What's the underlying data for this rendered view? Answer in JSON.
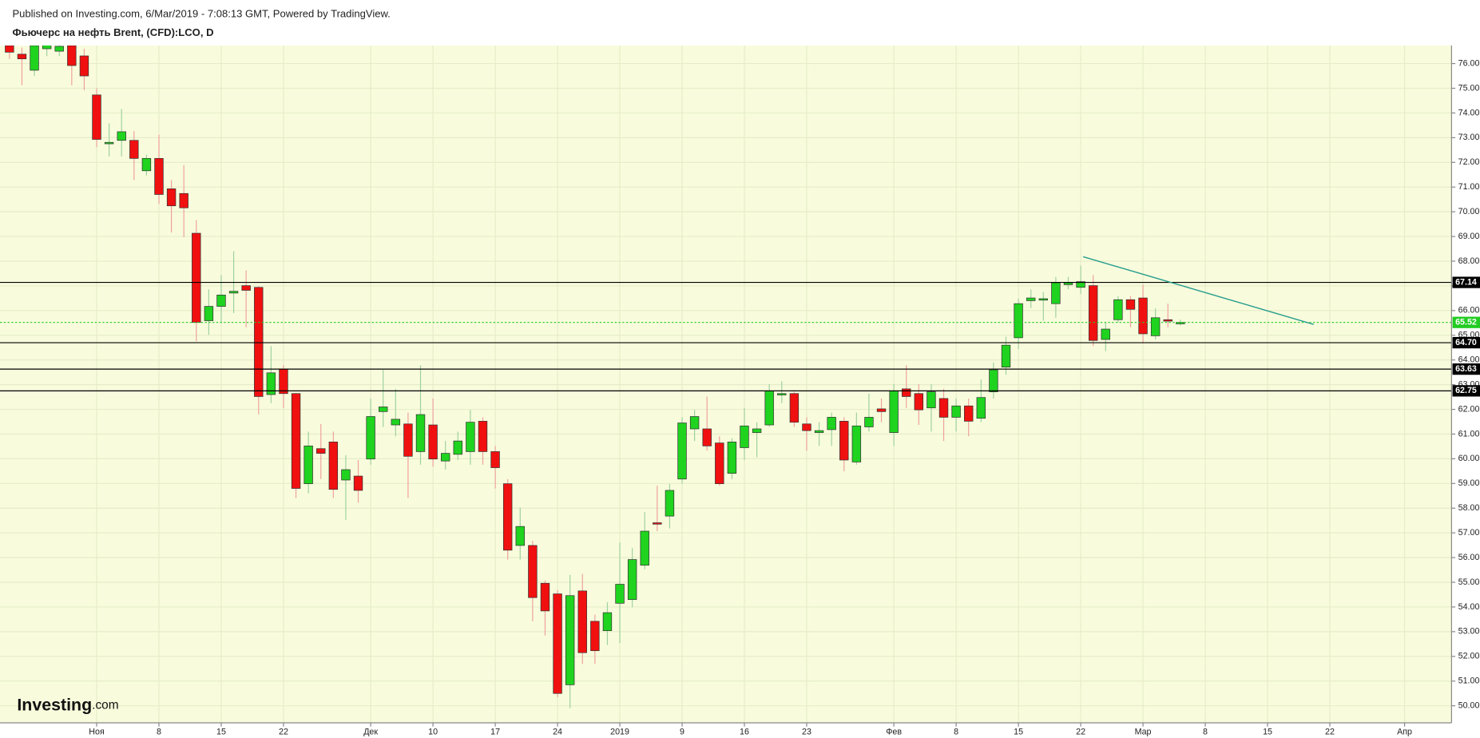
{
  "chart_data": {
    "type": "candlestick",
    "subtitle": "Published on Investing.com, 6/Mar/2019 - 7:08:13 GMT, Powered by TradingView.",
    "title": "Фьючерс на нефть Brent, (CFD):LCO, D",
    "watermark": {
      "brand": "Investing",
      "suffix": ".com"
    },
    "up_color": "#1fd31f",
    "down_color": "#f01010",
    "open": [
      76.73,
      76.38,
      75.73,
      76.6,
      76.5,
      76.73,
      76.31,
      74.73,
      72.77,
      72.89,
      72.89,
      71.66,
      72.16,
      70.93,
      70.74,
      69.13,
      65.59,
      66.17,
      66.71,
      67.01,
      66.94,
      62.6,
      63.63,
      62.64,
      58.99,
      60.41,
      60.68,
      59.14,
      59.3,
      59.99,
      61.91,
      61.37,
      61.41,
      60.29,
      61.37,
      59.91,
      60.18,
      60.29,
      61.52,
      60.29,
      58.99,
      56.49,
      56.49,
      54.96,
      54.53,
      50.85,
      54.65,
      53.42,
      53.04,
      54.15,
      54.3,
      55.69,
      57.41,
      57.68,
      59.18,
      61.21,
      61.21,
      60.64,
      59.41,
      60.45,
      61.06,
      61.37,
      62.6,
      62.64,
      61.41,
      61.06,
      61.18,
      61.52,
      59.87,
      61.29,
      62.02,
      61.06,
      62.83,
      62.64,
      62.06,
      62.44,
      61.68,
      62.14,
      61.64,
      62.71,
      63.71,
      64.9,
      66.4,
      66.44,
      66.28,
      67.05,
      66.94,
      67.01,
      64.83,
      65.63,
      66.44,
      66.51,
      64.98,
      65.63,
      65.5
    ],
    "high": [
      76.8,
      76.65,
      76.8,
      76.8,
      76.9,
      76.8,
      76.6,
      75.0,
      73.58,
      74.16,
      73.27,
      72.31,
      73.12,
      71.28,
      71.89,
      69.66,
      66.86,
      67.44,
      68.4,
      67.63,
      66.98,
      64.56,
      63.79,
      62.67,
      61.1,
      61.41,
      61.1,
      60.14,
      59.95,
      62.44,
      63.6,
      62.83,
      61.87,
      63.79,
      62.44,
      60.72,
      61.1,
      61.98,
      61.68,
      60.52,
      59.18,
      58.03,
      56.68,
      55.07,
      54.69,
      55.3,
      55.34,
      53.69,
      54.19,
      56.61,
      56.38,
      57.84,
      58.91,
      58.99,
      61.68,
      61.98,
      62.52,
      60.91,
      60.83,
      62.06,
      61.48,
      63.02,
      63.14,
      62.71,
      61.68,
      61.48,
      61.87,
      61.68,
      61.87,
      62.64,
      62.44,
      63.02,
      63.79,
      63.02,
      63.02,
      62.83,
      62.44,
      62.44,
      63.21,
      63.9,
      64.94,
      66.48,
      66.86,
      66.75,
      67.36,
      67.36,
      67.82,
      67.44,
      65.52,
      66.59,
      66.59,
      67.05,
      66.09,
      66.28,
      65.63
    ],
    "low": [
      76.19,
      75.12,
      75.5,
      76.3,
      76.3,
      75.12,
      74.92,
      72.62,
      72.24,
      72.24,
      71.28,
      71.47,
      70.32,
      69.16,
      68.97,
      64.75,
      65.02,
      65.52,
      65.9,
      65.32,
      61.8,
      62.25,
      62.06,
      58.41,
      58.6,
      59.18,
      58.41,
      57.53,
      58.22,
      59.76,
      61.29,
      60.91,
      58.41,
      59.76,
      59.68,
      59.56,
      59.95,
      59.76,
      59.76,
      58.8,
      55.92,
      55.92,
      53.42,
      52.84,
      50.35,
      49.9,
      51.69,
      51.69,
      52.46,
      52.54,
      53.99,
      55.53,
      57.07,
      57.18,
      58.99,
      60.72,
      60.33,
      58.91,
      59.18,
      59.95,
      60.06,
      61.29,
      62.25,
      61.29,
      60.33,
      60.52,
      60.52,
      59.49,
      59.76,
      61.1,
      61.48,
      60.52,
      62.06,
      61.37,
      61.1,
      60.72,
      61.1,
      60.91,
      61.48,
      62.44,
      63.4,
      64.44,
      66.1,
      65.59,
      65.71,
      66.86,
      66.67,
      64.56,
      64.36,
      65.52,
      65.32,
      64.67,
      64.83,
      65.32,
      65.4
    ],
    "close": [
      76.46,
      76.19,
      76.73,
      76.77,
      76.7,
      75.92,
      75.5,
      72.93,
      72.81,
      73.24,
      72.16,
      72.16,
      70.7,
      70.24,
      70.16,
      65.52,
      66.17,
      66.63,
      66.78,
      66.82,
      62.52,
      63.48,
      62.64,
      58.8,
      60.52,
      60.22,
      58.76,
      59.56,
      58.72,
      61.71,
      62.1,
      61.6,
      60.1,
      61.79,
      59.99,
      60.22,
      60.72,
      61.48,
      60.29,
      59.64,
      56.3,
      57.26,
      54.38,
      53.84,
      50.5,
      54.46,
      52.15,
      52.23,
      53.77,
      54.92,
      55.92,
      57.07,
      57.37,
      58.72,
      61.45,
      61.71,
      60.52,
      58.99,
      60.68,
      61.33,
      61.21,
      62.75,
      62.64,
      61.48,
      61.14,
      61.14,
      61.68,
      59.95,
      61.33,
      61.68,
      61.91,
      62.75,
      62.52,
      61.98,
      62.71,
      61.68,
      62.14,
      61.52,
      62.48,
      63.6,
      64.6,
      66.28,
      66.51,
      66.48,
      67.13,
      67.13,
      67.17,
      64.79,
      65.25,
      66.44,
      66.05,
      65.06,
      65.71,
      65.59,
      65.52
    ],
    "xlim": [
      -0.76,
      115.77
    ],
    "xticks": [
      {
        "value": 7,
        "label": "Ноя"
      },
      {
        "value": 12,
        "label": "8"
      },
      {
        "value": 17,
        "label": "15"
      },
      {
        "value": 22,
        "label": "22"
      },
      {
        "value": 29,
        "label": "Дек"
      },
      {
        "value": 34,
        "label": "10"
      },
      {
        "value": 39,
        "label": "17"
      },
      {
        "value": 44,
        "label": "24"
      },
      {
        "value": 49,
        "label": "2019"
      },
      {
        "value": 54,
        "label": "9"
      },
      {
        "value": 59,
        "label": "16"
      },
      {
        "value": 64,
        "label": "23"
      },
      {
        "value": 71,
        "label": "Фев"
      },
      {
        "value": 76,
        "label": "8"
      },
      {
        "value": 81,
        "label": "15"
      },
      {
        "value": 86,
        "label": "22"
      },
      {
        "value": 91,
        "label": "Мар"
      },
      {
        "value": 96,
        "label": "8"
      },
      {
        "value": 101,
        "label": "15"
      },
      {
        "value": 106,
        "label": "22"
      },
      {
        "value": 112,
        "label": "Апр"
      }
    ],
    "ylim": [
      49.31,
      76.73
    ],
    "yticks": [
      {
        "value": 50,
        "label": "50.00"
      },
      {
        "value": 51,
        "label": "51.00"
      },
      {
        "value": 52,
        "label": "52.00"
      },
      {
        "value": 53,
        "label": "53.00"
      },
      {
        "value": 54,
        "label": "54.00"
      },
      {
        "value": 55,
        "label": "55.00"
      },
      {
        "value": 56,
        "label": "56.00"
      },
      {
        "value": 57,
        "label": "57.00"
      },
      {
        "value": 58,
        "label": "58.00"
      },
      {
        "value": 59,
        "label": "59.00"
      },
      {
        "value": 60,
        "label": "60.00"
      },
      {
        "value": 61,
        "label": "61.00"
      },
      {
        "value": 62,
        "label": "62.00"
      },
      {
        "value": 63,
        "label": "63.00"
      },
      {
        "value": 64,
        "label": "64.00"
      },
      {
        "value": 65,
        "label": "65.00"
      },
      {
        "value": 66,
        "label": "66.00"
      },
      {
        "value": 67,
        "label": "67.00"
      },
      {
        "value": 68,
        "label": "68.00"
      },
      {
        "value": 69,
        "label": "69.00"
      },
      {
        "value": 70,
        "label": "70.00"
      },
      {
        "value": 71,
        "label": "71.00"
      },
      {
        "value": 72,
        "label": "72.00"
      },
      {
        "value": 73,
        "label": "73.00"
      },
      {
        "value": 74,
        "label": "74.00"
      },
      {
        "value": 75,
        "label": "75.00"
      },
      {
        "value": 76,
        "label": "76.00"
      }
    ],
    "grid": true,
    "levels": [
      {
        "value": 67.14,
        "label": "67.14"
      },
      {
        "value": 64.7,
        "label": "64.70"
      },
      {
        "value": 63.63,
        "label": "63.63"
      },
      {
        "value": 62.75,
        "label": "62.75"
      }
    ],
    "last_price": {
      "value": 65.52,
      "label": "65.52"
    },
    "last_price_color": "#22cc22",
    "trendline": {
      "x": [
        86.2,
        104.7
      ],
      "y": [
        68.18,
        65.44
      ],
      "color": "#2a9d8f"
    }
  }
}
